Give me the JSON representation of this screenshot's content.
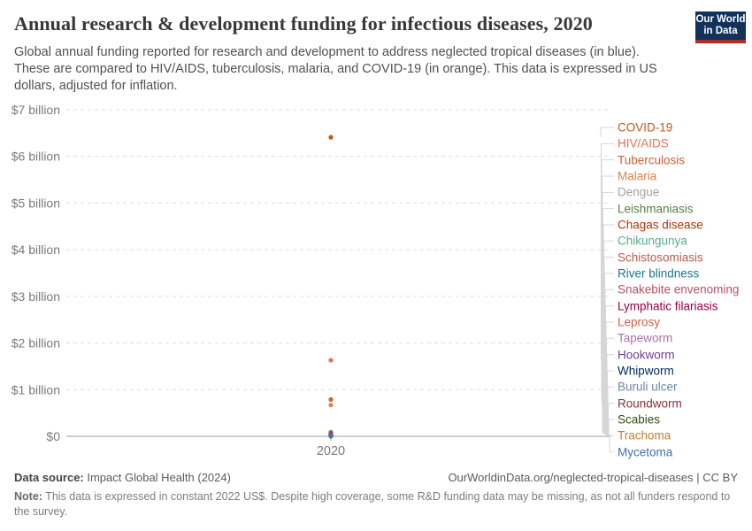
{
  "header": {
    "title": "Annual research & development funding for infectious diseases, 2020",
    "subtitle": "Global annual funding reported for research and development to address neglected tropical diseases (in blue). These are compared to HIV/AIDS, tuberculosis, malaria, and COVID-19 (in orange). This data is expressed in US dollars, adjusted for inflation.",
    "logo": {
      "line1": "Our World",
      "line2": "in Data"
    }
  },
  "chart_data": {
    "type": "scatter",
    "title": "Annual research & development funding for infectious diseases, 2020",
    "x": [
      2020
    ],
    "x_tick_label": "2020",
    "ylim": [
      0,
      7
    ],
    "grid": "dashed-horizontal",
    "legend_position": "right",
    "y_ticks": [
      {
        "label": "$0",
        "value": 0
      },
      {
        "label": "$1 billion",
        "value": 1
      },
      {
        "label": "$2 billion",
        "value": 2
      },
      {
        "label": "$3 billion",
        "value": 3
      },
      {
        "label": "$4 billion",
        "value": 4
      },
      {
        "label": "$5 billion",
        "value": 5
      },
      {
        "label": "$6 billion",
        "value": 6
      },
      {
        "label": "$7 billion",
        "value": 7
      }
    ],
    "value_unit": "US$ billion",
    "series": [
      {
        "name": "COVID-19",
        "value_billion": 6.41,
        "color": "#C05917"
      },
      {
        "name": "HIV/AIDS",
        "value_billion": 1.63,
        "color": "#E8705B"
      },
      {
        "name": "Tuberculosis",
        "value_billion": 0.79,
        "color": "#CF5F35"
      },
      {
        "name": "Malaria",
        "value_billion": 0.67,
        "color": "#DD8246"
      },
      {
        "name": "Dengue",
        "value_billion": 0.09,
        "color": "#A5A39E"
      },
      {
        "name": "Leishmaniasis",
        "value_billion": 0.08,
        "color": "#578145"
      },
      {
        "name": "Chagas disease",
        "value_billion": 0.07,
        "color": "#B13507"
      },
      {
        "name": "Chikungunya",
        "value_billion": 0.06,
        "color": "#58AC8C"
      },
      {
        "name": "Schistosomiasis",
        "value_billion": 0.05,
        "color": "#BB5B4A"
      },
      {
        "name": "River blindness",
        "value_billion": 0.045,
        "color": "#18778C"
      },
      {
        "name": "Snakebite envenoming",
        "value_billion": 0.04,
        "color": "#C15065"
      },
      {
        "name": "Lymphatic filariasis",
        "value_billion": 0.035,
        "color": "#970046"
      },
      {
        "name": "Leprosy",
        "value_billion": 0.03,
        "color": "#D2614E"
      },
      {
        "name": "Tapeworm",
        "value_billion": 0.025,
        "color": "#AC73A6"
      },
      {
        "name": "Hookworm",
        "value_billion": 0.02,
        "color": "#6D3E91"
      },
      {
        "name": "Whipworm",
        "value_billion": 0.017,
        "color": "#00295B"
      },
      {
        "name": "Buruli ulcer",
        "value_billion": 0.014,
        "color": "#6C87A8"
      },
      {
        "name": "Roundworm",
        "value_billion": 0.011,
        "color": "#883039"
      },
      {
        "name": "Scabies",
        "value_billion": 0.008,
        "color": "#2E5317"
      },
      {
        "name": "Trachoma",
        "value_billion": 0.005,
        "color": "#BE8431"
      },
      {
        "name": "Mycetoma",
        "value_billion": 0.002,
        "color": "#3E73B4"
      }
    ]
  },
  "footer": {
    "source_label": "Data source:",
    "source_value": " Impact Global Health (2024)",
    "attribution": "OurWorldinData.org/neglected-tropical-diseases | CC BY",
    "note_label": "Note:",
    "note_value": " This data is expressed in constant 2022 US$. Despite high coverage, some R&D funding data may be missing, as not all funders respond to the survey."
  }
}
